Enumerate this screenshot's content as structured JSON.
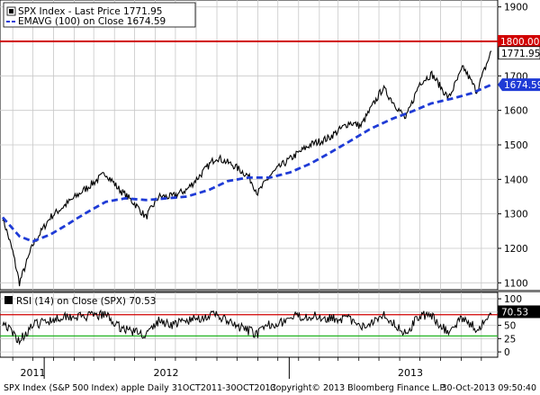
{
  "chart_data": [
    {
      "type": "line",
      "title": "",
      "legend": [
        {
          "label": "SPX Index - Last Price 1771.95",
          "color": "#000000",
          "marker": "line"
        },
        {
          "label": "EMAVG (100) on Close  1674.59",
          "color": "#1f3bd6",
          "marker": "dashed"
        }
      ],
      "legend_placement": "top-left",
      "grid": true,
      "ylim": [
        1080,
        1920
      ],
      "yticks": [
        1100,
        1200,
        1300,
        1400,
        1500,
        1600,
        1700,
        1800,
        1900
      ],
      "ytick_labels": [
        "1100",
        "1200",
        "1300",
        "1400",
        "1500",
        "1600",
        "1700",
        "1800",
        "1900"
      ],
      "series": [
        {
          "name": "SPX Index - Last Price",
          "color": "#000000",
          "x": [
            "2011-10-31",
            "2011-11-15",
            "2011-11-25",
            "2011-12-15",
            "2012-01-10",
            "2012-02-01",
            "2012-03-01",
            "2012-04-02",
            "2012-04-20",
            "2012-05-15",
            "2012-06-01",
            "2012-06-20",
            "2012-07-10",
            "2012-08-01",
            "2012-08-20",
            "2012-09-14",
            "2012-10-10",
            "2012-11-01",
            "2012-11-15",
            "2012-12-03",
            "2012-12-20",
            "2013-01-10",
            "2013-02-01",
            "2013-03-01",
            "2013-04-01",
            "2013-04-18",
            "2013-05-21",
            "2013-06-24",
            "2013-07-15",
            "2013-08-02",
            "2013-08-27",
            "2013-09-18",
            "2013-10-08",
            "2013-10-30"
          ],
          "y": [
            1290,
            1190,
            1100,
            1210,
            1290,
            1325,
            1370,
            1418,
            1375,
            1330,
            1290,
            1350,
            1350,
            1370,
            1410,
            1465,
            1440,
            1410,
            1360,
            1410,
            1440,
            1470,
            1500,
            1520,
            1565,
            1555,
            1665,
            1575,
            1680,
            1705,
            1635,
            1725,
            1655,
            1772
          ]
        },
        {
          "name": "EMAVG (100) on Close",
          "color": "#1f3bd6",
          "style": "dashed",
          "x": [
            "2011-10-31",
            "2011-11-25",
            "2011-12-15",
            "2012-01-10",
            "2012-02-01",
            "2012-03-01",
            "2012-04-02",
            "2012-05-01",
            "2012-06-01",
            "2012-07-02",
            "2012-08-01",
            "2012-09-04",
            "2012-10-01",
            "2012-11-01",
            "2012-12-03",
            "2013-01-02",
            "2013-02-01",
            "2013-03-01",
            "2013-04-01",
            "2013-05-01",
            "2013-06-03",
            "2013-07-01",
            "2013-08-01",
            "2013-09-03",
            "2013-10-01",
            "2013-10-30"
          ],
          "y": [
            1290,
            1235,
            1220,
            1240,
            1265,
            1300,
            1335,
            1345,
            1340,
            1345,
            1350,
            1370,
            1395,
            1405,
            1405,
            1420,
            1445,
            1475,
            1510,
            1545,
            1575,
            1595,
            1620,
            1635,
            1650,
            1674.59
          ]
        }
      ],
      "reference_lines": [
        {
          "y": 1800,
          "label": "1800.00",
          "color": "#d10000"
        }
      ],
      "last_value_tags": [
        {
          "value": 1771.95,
          "label": "1771.95",
          "style": "outline"
        },
        {
          "value": 1674.59,
          "label": "1674.59",
          "style": "filled",
          "color": "#1f3bd6"
        }
      ]
    },
    {
      "type": "line",
      "title": "",
      "legend": [
        {
          "label": "RSI (14) on Close (SPX) 70.53",
          "color": "#000000",
          "marker": "square"
        }
      ],
      "legend_placement": "top-left",
      "grid": true,
      "ylim": [
        -10,
        112
      ],
      "yticks": [
        0,
        25,
        50,
        75,
        100
      ],
      "ytick_labels": [
        "0",
        "25",
        "50",
        "75",
        "100"
      ],
      "series": [
        {
          "name": "RSI (14) on Close (SPX)",
          "color": "#000000",
          "x": [
            "2011-10-31",
            "2011-11-15",
            "2011-11-25",
            "2011-12-15",
            "2012-01-10",
            "2012-02-01",
            "2012-03-01",
            "2012-04-02",
            "2012-04-20",
            "2012-05-15",
            "2012-06-01",
            "2012-06-20",
            "2012-07-10",
            "2012-08-01",
            "2012-08-20",
            "2012-09-14",
            "2012-10-10",
            "2012-11-01",
            "2012-11-15",
            "2012-12-03",
            "2012-12-20",
            "2013-01-10",
            "2013-02-01",
            "2013-03-01",
            "2013-04-01",
            "2013-04-18",
            "2013-05-21",
            "2013-06-24",
            "2013-07-15",
            "2013-08-02",
            "2013-08-27",
            "2013-09-18",
            "2013-10-08",
            "2013-10-30"
          ],
          "y": [
            58,
            34,
            22,
            50,
            60,
            68,
            66,
            70,
            48,
            38,
            32,
            58,
            52,
            58,
            64,
            70,
            50,
            40,
            34,
            52,
            56,
            66,
            68,
            64,
            62,
            44,
            72,
            34,
            70,
            66,
            36,
            66,
            42,
            70.53
          ]
        }
      ],
      "reference_lines": [
        {
          "y": 70,
          "color": "#d10000"
        },
        {
          "y": 30,
          "color": "#22b522"
        }
      ],
      "last_value_tags": [
        {
          "value": 70.53,
          "label": "70.53",
          "style": "filled",
          "color": "#000000"
        }
      ]
    }
  ],
  "x_axis": {
    "start": "2011-10-31",
    "end": "2013-10-30",
    "year_labels": [
      {
        "label": "2011",
        "center": "2011-12-15"
      },
      {
        "label": "2012",
        "center": "2012-07-01"
      },
      {
        "label": "2013",
        "center": "2013-07-01"
      }
    ],
    "year_boundaries": [
      "2012-01-01",
      "2013-01-01"
    ]
  },
  "footer": {
    "left": "SPX Index (S&P 500 Index) apple  Daily 31OCT2011-30OCT2013",
    "center": "Copyright© 2013 Bloomberg Finance L.P.",
    "right": "30-Oct-2013 09:50:40"
  },
  "colors": {
    "price": "#000000",
    "ema": "#1f3bd6",
    "resistance": "#d10000",
    "rsi_upper": "#d10000",
    "rsi_lower": "#22b522",
    "grid": "#c8c8c8",
    "background": "#ffffff"
  }
}
